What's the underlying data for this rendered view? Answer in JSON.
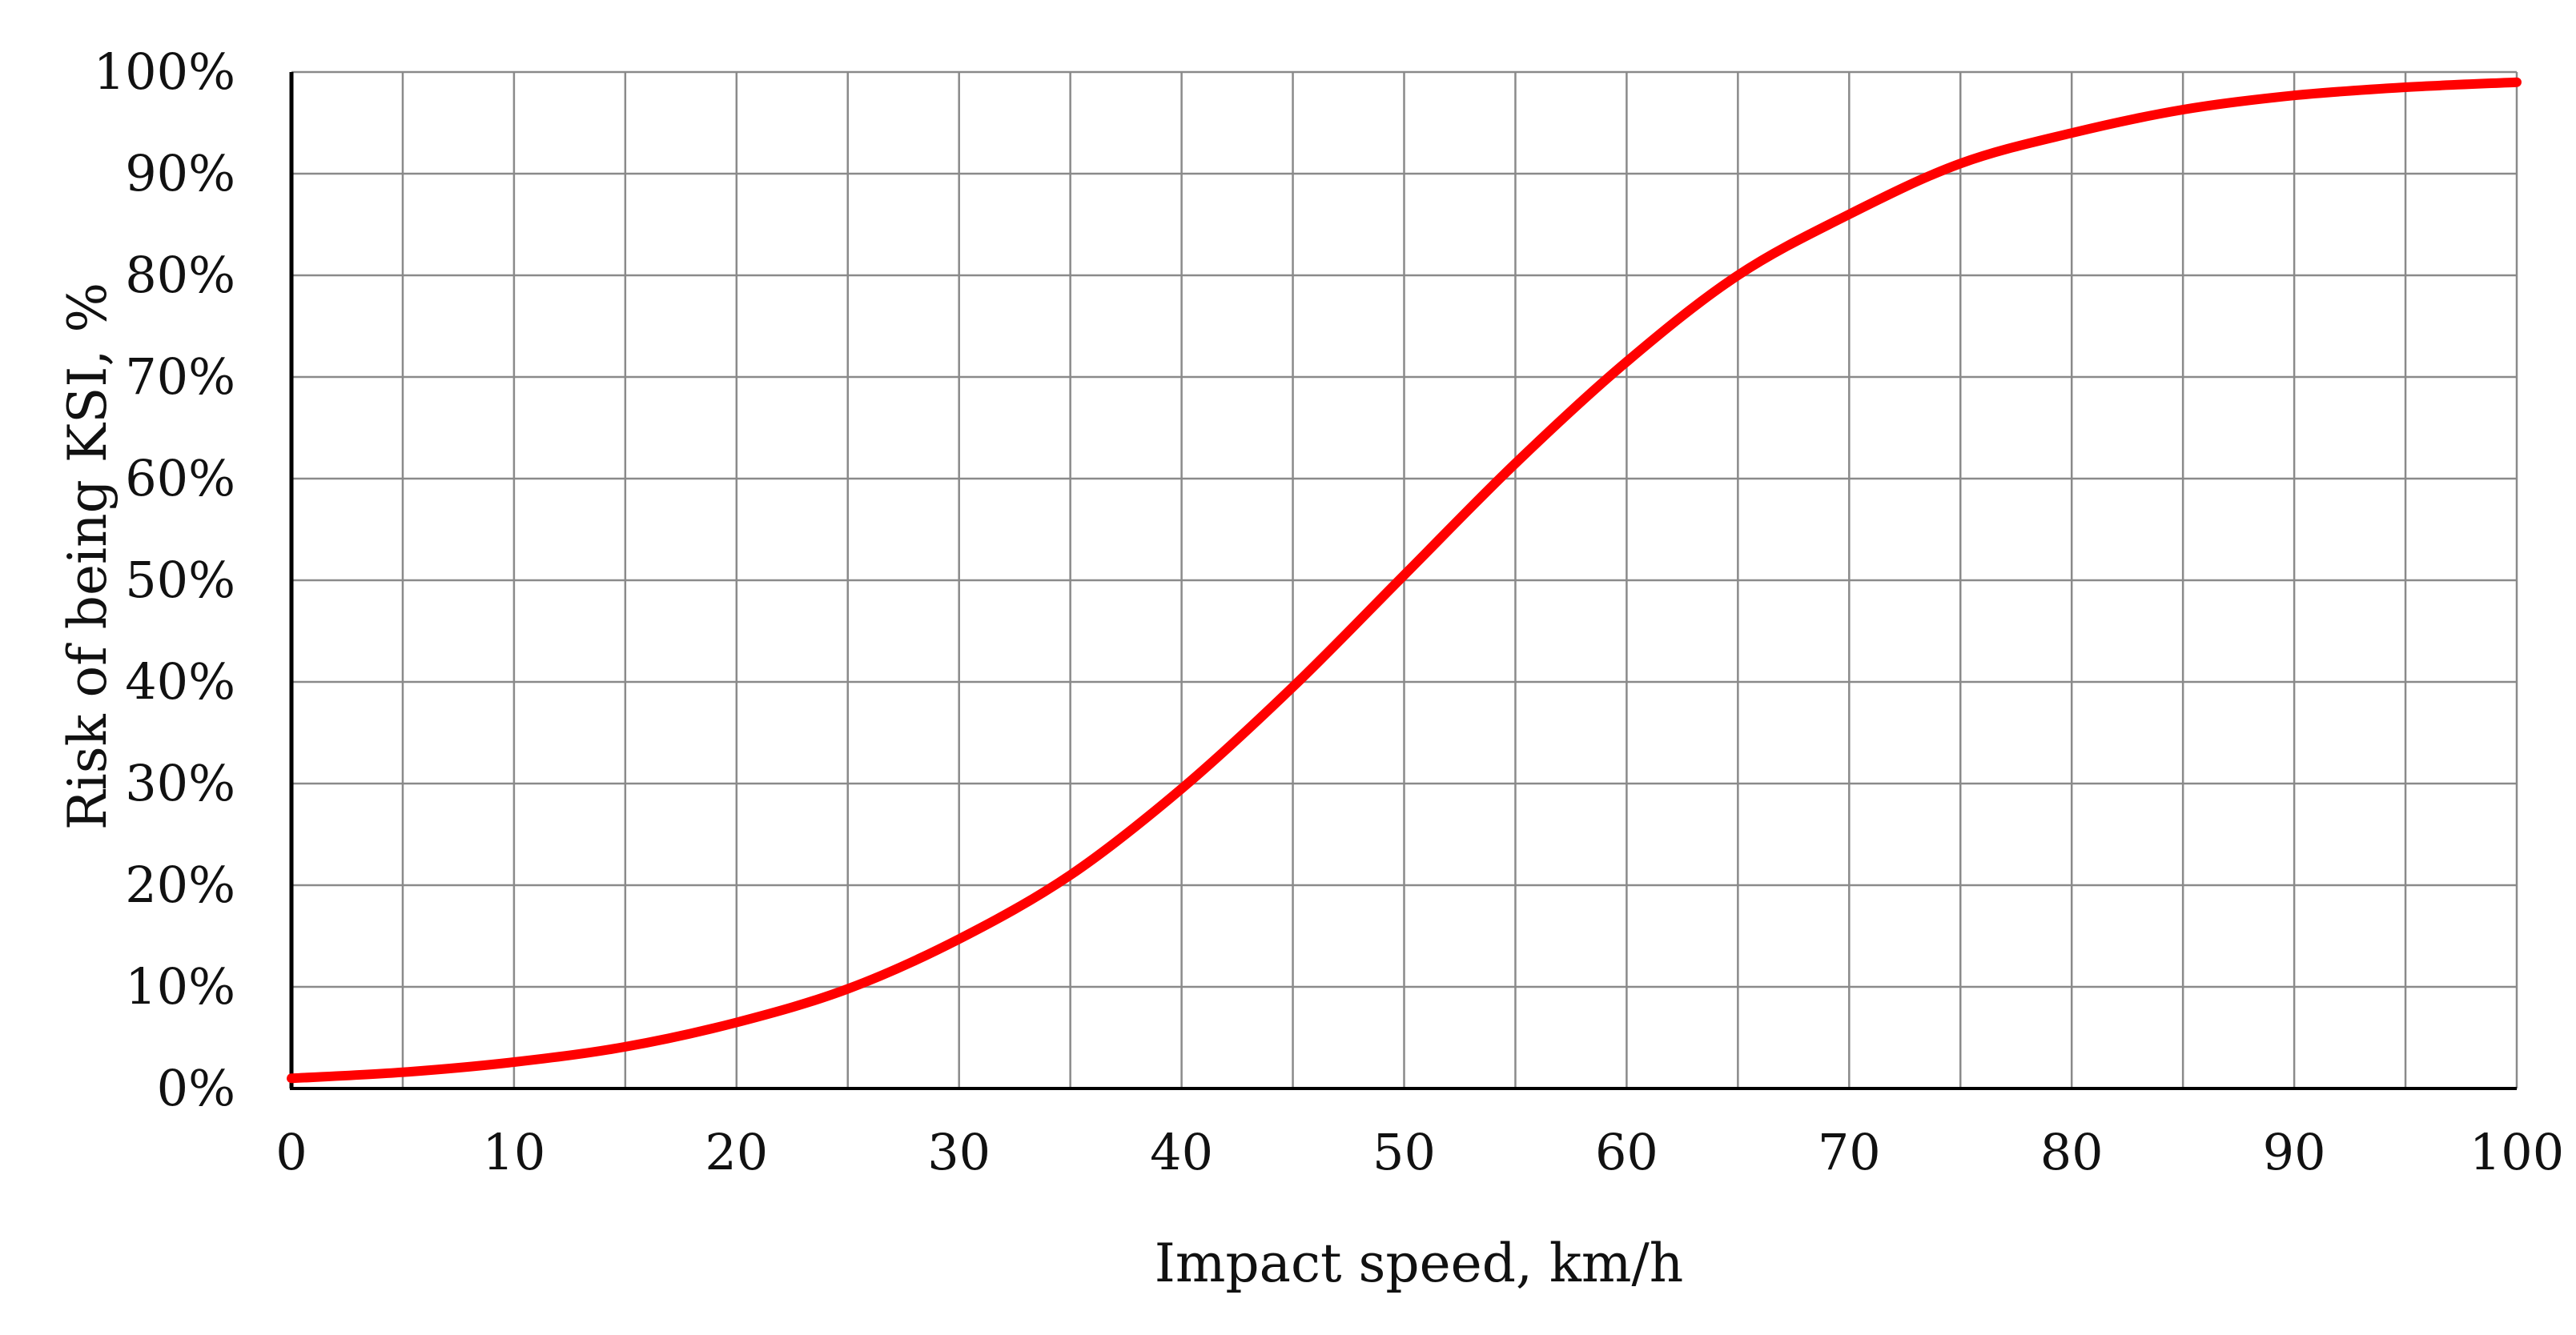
{
  "chart_data": {
    "type": "line",
    "title": "",
    "xlabel": "Impact speed, km/h",
    "ylabel": "Risk of being KSI, %",
    "xlim": [
      0,
      100
    ],
    "ylim": [
      0,
      100
    ],
    "x_minor_grid_step": 5,
    "y_grid_step": 10,
    "x_tick_labels": [
      "0",
      "10",
      "20",
      "30",
      "40",
      "50",
      "60",
      "70",
      "80",
      "90",
      "100"
    ],
    "y_tick_labels": [
      "0%",
      "10%",
      "20%",
      "30%",
      "40%",
      "50%",
      "60%",
      "70%",
      "80%",
      "90%",
      "100%"
    ],
    "grid": true,
    "legend": "none",
    "series": [
      {
        "name": "Risk of being KSI",
        "color": "#ff0000",
        "x": [
          0,
          5,
          10,
          15,
          20,
          25,
          30,
          35,
          40,
          45,
          50,
          55,
          60,
          65,
          70,
          75,
          80,
          85,
          90,
          95,
          100
        ],
        "y": [
          1.0,
          1.6,
          2.6,
          4.1,
          6.5,
          9.8,
          14.7,
          21.0,
          29.5,
          39.5,
          50.5,
          61.5,
          71.5,
          80.0,
          86.0,
          91.0,
          94.0,
          96.3,
          97.7,
          98.5,
          99.0
        ]
      }
    ]
  }
}
